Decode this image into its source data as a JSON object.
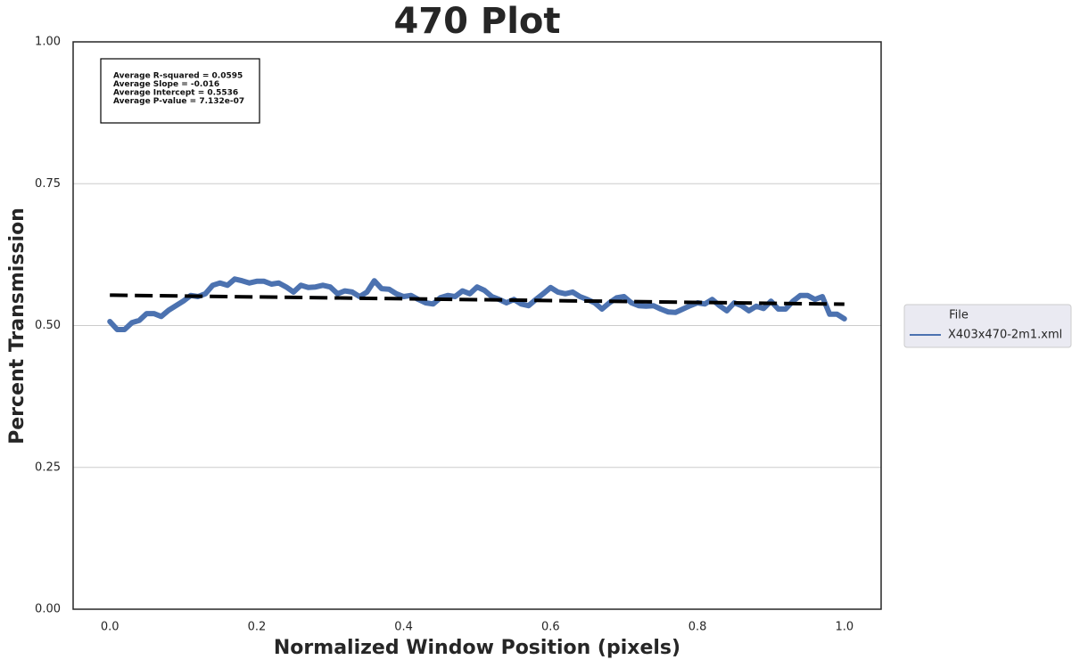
{
  "chart_data": {
    "type": "line",
    "title": "470 Plot",
    "x_label": "Normalized Window Position (pixels)",
    "y_label": "Percent Transmission",
    "annotations": [
      "Average R-squared = 0.0595",
      "Average Slope = -0.016",
      "Average Intercept = 0.5536",
      "Average P-value = 7.132e-07"
    ],
    "legend_title": "File",
    "legend_position": "outside right",
    "grid": "y",
    "xlim": [
      -0.05,
      1.05
    ],
    "ylim": [
      0,
      1
    ],
    "xticks": [
      {
        "value": 0,
        "label": "0.0"
      },
      0.2,
      0.4,
      0.6,
      0.8,
      {
        "value": 1,
        "label": "1.0"
      }
    ],
    "yticks": [
      {
        "value": 0,
        "label": "0.00"
      },
      0.25,
      {
        "value": 0.5,
        "label": "0.50"
      },
      0.75,
      {
        "value": 1,
        "label": "1.00"
      }
    ],
    "x": [
      0,
      0.01,
      0.02,
      0.03,
      0.04,
      0.05,
      0.06,
      0.07,
      0.08,
      0.09,
      0.1,
      0.11,
      0.12,
      0.13,
      0.14,
      0.15,
      0.16,
      0.17,
      0.18,
      0.19,
      0.2,
      0.21,
      0.22,
      0.23,
      0.24,
      0.25,
      0.26,
      0.27,
      0.28,
      0.29,
      0.3,
      0.31,
      0.32,
      0.33,
      0.34,
      0.35,
      0.36,
      0.37,
      0.38,
      0.39,
      0.4,
      0.41,
      0.42,
      0.43,
      0.44,
      0.45,
      0.46,
      0.47,
      0.48,
      0.49,
      0.5,
      0.51,
      0.52,
      0.53,
      0.54,
      0.55,
      0.56,
      0.57,
      0.58,
      0.59,
      0.6,
      0.61,
      0.62,
      0.63,
      0.64,
      0.65,
      0.66,
      0.67,
      0.68,
      0.69,
      0.7,
      0.71,
      0.72,
      0.73,
      0.74,
      0.75,
      0.76,
      0.77,
      0.78,
      0.79,
      0.8,
      0.81,
      0.82,
      0.83,
      0.84,
      0.85,
      0.86,
      0.87,
      0.88,
      0.89,
      0.9,
      0.91,
      0.92,
      0.93,
      0.94,
      0.95,
      0.96,
      0.97,
      0.98,
      0.99,
      1
    ],
    "series": [
      {
        "name": "X403x470-2m1.xml",
        "color": "#4c72b0",
        "values": [
          0.507,
          0.493,
          0.493,
          0.505,
          0.509,
          0.521,
          0.521,
          0.516,
          0.527,
          0.535,
          0.543,
          0.553,
          0.551,
          0.556,
          0.571,
          0.575,
          0.571,
          0.582,
          0.579,
          0.575,
          0.578,
          0.578,
          0.573,
          0.575,
          0.568,
          0.559,
          0.571,
          0.567,
          0.568,
          0.571,
          0.568,
          0.556,
          0.561,
          0.559,
          0.551,
          0.559,
          0.579,
          0.565,
          0.564,
          0.556,
          0.551,
          0.553,
          0.546,
          0.54,
          0.538,
          0.549,
          0.553,
          0.551,
          0.561,
          0.556,
          0.568,
          0.562,
          0.551,
          0.546,
          0.54,
          0.546,
          0.538,
          0.535,
          0.546,
          0.556,
          0.567,
          0.559,
          0.556,
          0.559,
          0.551,
          0.546,
          0.54,
          0.529,
          0.54,
          0.549,
          0.551,
          0.54,
          0.535,
          0.534,
          0.535,
          0.529,
          0.524,
          0.523,
          0.529,
          0.535,
          0.54,
          0.538,
          0.546,
          0.535,
          0.526,
          0.54,
          0.535,
          0.526,
          0.534,
          0.53,
          0.543,
          0.529,
          0.529,
          0.543,
          0.553,
          0.553,
          0.546,
          0.551,
          0.52,
          0.52,
          0.512
        ]
      }
    ],
    "trend_line": {
      "x": [
        0,
        1
      ],
      "values": [
        0.5536,
        0.5376
      ],
      "color": "#000000",
      "dashed": true
    }
  }
}
